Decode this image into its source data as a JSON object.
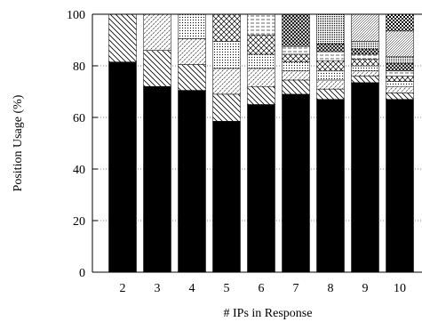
{
  "chart_data": {
    "type": "bar",
    "stacked": true,
    "xlabel": "# IPs in Response",
    "ylabel": "Position Usage (%)",
    "ylim": [
      0,
      100
    ],
    "yticks": [
      0,
      20,
      40,
      60,
      80,
      100
    ],
    "grid": "horizontal dotted",
    "categories": [
      "2",
      "3",
      "4",
      "5",
      "6",
      "7",
      "8",
      "9",
      "10"
    ],
    "series": [
      {
        "values": [
          81.5,
          72.0,
          70.5,
          58.5,
          65.0,
          69.0,
          67.0,
          73.5,
          67.0
        ]
      },
      {
        "values": [
          18.5,
          14.0,
          10.0,
          10.5,
          7.0,
          5.5,
          4.0,
          2.5,
          2.5
        ]
      },
      {
        "values": [
          0,
          14.0,
          10.0,
          10.0,
          7.0,
          3.5,
          3.5,
          2.0,
          2.5
        ]
      },
      {
        "values": [
          0,
          0,
          9.5,
          10.5,
          5.5,
          3.5,
          3.5,
          2.0,
          2.0
        ]
      },
      {
        "values": [
          0,
          0,
          0,
          10.5,
          7.5,
          3.0,
          4.0,
          2.5,
          2.0
        ]
      },
      {
        "values": [
          0,
          0,
          0,
          0,
          8.0,
          3.0,
          3.5,
          2.0,
          2.0
        ]
      },
      {
        "values": [
          0,
          0,
          0,
          0,
          0,
          12.5,
          3.0,
          2.0,
          3.0
        ]
      },
      {
        "values": [
          0,
          0,
          0,
          0,
          0,
          0,
          11.5,
          3.0,
          2.5
        ]
      },
      {
        "values": [
          0,
          0,
          0,
          0,
          0,
          0,
          0,
          10.5,
          10.0
        ]
      },
      {
        "values": [
          0,
          0,
          0,
          0,
          0,
          0,
          0,
          0,
          6.5
        ]
      }
    ],
    "styles": [
      "solid",
      "diag-back",
      "diag-fwd",
      "dots",
      "crosshatch",
      "horiz",
      "cross-dense",
      "dense-dots",
      "diag-fine",
      "checker"
    ]
  }
}
